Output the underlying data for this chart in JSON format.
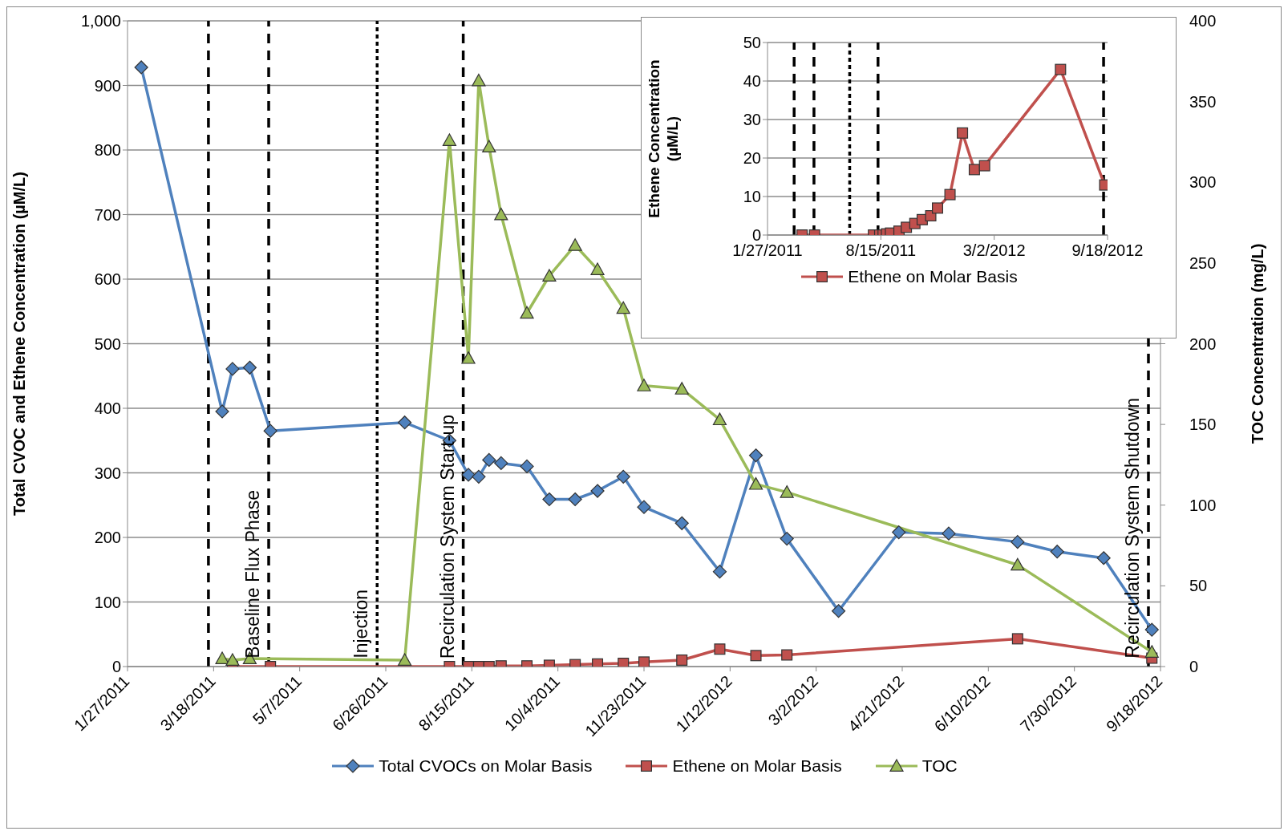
{
  "chart_data": [
    {
      "type": "line",
      "ylabel": "Total CVOC and Ethene  Concentration (µM/L)",
      "y2label": "TOC Concentration (mg/L)",
      "xlim": [
        "2011-01-27",
        "2012-09-18"
      ],
      "xticks": [
        {
          "value": "2011-01-27",
          "label": "1/27/2011"
        },
        {
          "value": "2011-03-18",
          "label": "3/18/2011"
        },
        {
          "value": "2011-05-07",
          "label": "5/7/2011"
        },
        {
          "value": "2011-06-26",
          "label": "6/26/2011"
        },
        {
          "value": "2011-08-15",
          "label": "8/15/2011"
        },
        {
          "value": "2011-10-04",
          "label": "10/4/2011"
        },
        {
          "value": "2011-11-23",
          "label": "11/23/2011"
        },
        {
          "value": "2012-01-12",
          "label": "1/12/2012"
        },
        {
          "value": "2012-03-02",
          "label": "3/2/2012"
        },
        {
          "value": "2012-04-21",
          "label": "4/21/2012"
        },
        {
          "value": "2012-06-10",
          "label": "6/10/2012"
        },
        {
          "value": "2012-07-30",
          "label": "7/30/2012"
        },
        {
          "value": "2012-09-18",
          "label": "9/18/2012"
        }
      ],
      "ylim": [
        0,
        1000
      ],
      "yticks": [
        0,
        100,
        200,
        300,
        400,
        500,
        600,
        700,
        800,
        900,
        {
          "value": 1000,
          "label": "1,000"
        }
      ],
      "y2lim": [
        0,
        400
      ],
      "y2ticks": [
        0,
        50,
        100,
        150,
        200,
        250,
        300,
        350,
        400
      ],
      "grid": "y",
      "legend": "bottom",
      "line_style": "solid",
      "series": [
        {
          "name": "Total CVOCs on Molar Basis",
          "color": "#4f81bd",
          "marker": "diamond",
          "x": [
            "2011-02-04",
            "2011-03-23",
            "2011-03-29",
            "2011-04-08",
            "2011-04-20",
            "2011-07-07",
            "2011-08-02",
            "2011-08-13",
            "2011-08-19",
            "2011-08-25",
            "2011-09-01",
            "2011-09-16",
            "2011-09-29",
            "2011-10-14",
            "2011-10-27",
            "2011-11-11",
            "2011-11-23",
            "2011-12-15",
            "2012-01-06",
            "2012-01-27",
            "2012-02-14",
            "2012-03-15",
            "2012-04-19",
            "2012-05-18",
            "2012-06-27",
            "2012-07-20",
            "2012-08-16",
            "2012-09-13"
          ],
          "values": [
            928,
            395,
            461,
            463,
            365,
            378,
            350,
            297,
            294,
            320,
            315,
            310,
            259,
            259,
            272,
            294,
            247,
            222,
            147,
            327,
            198,
            86,
            208,
            206,
            193,
            178,
            168,
            57
          ]
        },
        {
          "name": "Ethene on Molar Basis",
          "color": "#c0504d",
          "marker": "square",
          "x": [
            "2011-03-29",
            "2011-04-20",
            "2011-08-02",
            "2011-08-13",
            "2011-08-19",
            "2011-08-25",
            "2011-09-01",
            "2011-09-16",
            "2011-09-29",
            "2011-10-14",
            "2011-10-27",
            "2011-11-11",
            "2011-11-23",
            "2011-12-15",
            "2012-01-06",
            "2012-01-27",
            "2012-02-14",
            "2012-06-27",
            "2012-09-13"
          ],
          "values": [
            0,
            0,
            0,
            0,
            0,
            0,
            1,
            1,
            2,
            3,
            4,
            5,
            7,
            10,
            27,
            17,
            18,
            43,
            13
          ]
        },
        {
          "name": "TOC",
          "color": "#9bbb59",
          "marker": "triangle",
          "axis": "y2",
          "x": [
            "2011-03-23",
            "2011-03-29",
            "2011-04-08",
            "2011-07-07",
            "2011-08-02",
            "2011-08-13",
            "2011-08-19",
            "2011-08-25",
            "2011-09-01",
            "2011-09-16",
            "2011-09-29",
            "2011-10-14",
            "2011-10-27",
            "2011-11-11",
            "2011-11-23",
            "2011-12-15",
            "2012-01-06",
            "2012-01-27",
            "2012-02-14",
            "2012-06-27",
            "2012-09-13"
          ],
          "values": [
            5,
            4,
            5,
            4,
            326,
            191,
            363,
            322,
            280,
            219,
            242,
            261,
            246,
            222,
            174,
            172,
            153,
            113,
            108,
            63,
            9
          ]
        }
      ],
      "ref_lines": [
        {
          "axis": "x",
          "value": "2011-03-15",
          "label": null,
          "line_style": "dashed",
          "color": "#000000"
        },
        {
          "axis": "x",
          "value": "2011-04-19",
          "label": "Baseline Flux Phase",
          "line_style": "dashed",
          "color": "#000000"
        },
        {
          "axis": "x",
          "value": "2011-06-21",
          "label": "Injection",
          "line_style": "dotted",
          "color": "#000000"
        },
        {
          "axis": "x",
          "value": "2011-08-10",
          "label": "Recirculation System Start-up",
          "line_style": "dashed",
          "color": "#000000"
        },
        {
          "axis": "x",
          "value": "2012-09-11",
          "label": "Recirculation System Shutdown",
          "line_style": "dashed",
          "color": "#000000"
        }
      ]
    },
    {
      "type": "line",
      "ylabel": "Ethene Concentration\n(µM/L)",
      "xlim": [
        "2011-01-27",
        "2012-09-18"
      ],
      "xticks": [
        {
          "value": "2011-01-27",
          "label": "1/27/2011"
        },
        {
          "value": "2011-08-15",
          "label": "8/15/2011"
        },
        {
          "value": "2012-03-02",
          "label": "3/2/2012"
        },
        {
          "value": "2012-09-18",
          "label": "9/18/2012"
        }
      ],
      "ylim": [
        0,
        50
      ],
      "yticks": [
        0,
        10,
        20,
        30,
        40,
        50
      ],
      "grid": "y",
      "legend": "bottom",
      "line_style": "solid",
      "series": [
        {
          "name": "Ethene on Molar Basis",
          "color": "#c0504d",
          "marker": "square",
          "x": [
            "2011-03-29",
            "2011-04-20",
            "2011-08-02",
            "2011-08-13",
            "2011-08-19",
            "2011-08-25",
            "2011-09-01",
            "2011-09-16",
            "2011-09-29",
            "2011-10-14",
            "2011-10-27",
            "2011-11-11",
            "2011-11-23",
            "2011-12-15",
            "2012-01-06",
            "2012-01-27",
            "2012-02-14",
            "2012-06-27",
            "2012-09-13"
          ],
          "values": [
            0,
            0,
            0,
            0,
            0,
            0.3,
            0.5,
            1,
            2,
            3,
            4,
            5,
            7,
            10.5,
            26.5,
            17,
            18,
            43,
            13
          ]
        }
      ],
      "ref_lines": [
        {
          "axis": "x",
          "value": "2011-03-15",
          "line_style": "dashed",
          "color": "#000000"
        },
        {
          "axis": "x",
          "value": "2011-04-19",
          "line_style": "dashed",
          "color": "#000000"
        },
        {
          "axis": "x",
          "value": "2011-06-21",
          "line_style": "dotted",
          "color": "#000000"
        },
        {
          "axis": "x",
          "value": "2011-08-10",
          "line_style": "dashed",
          "color": "#000000"
        },
        {
          "axis": "x",
          "value": "2012-09-11",
          "line_style": "dashed",
          "color": "#000000"
        }
      ]
    }
  ]
}
